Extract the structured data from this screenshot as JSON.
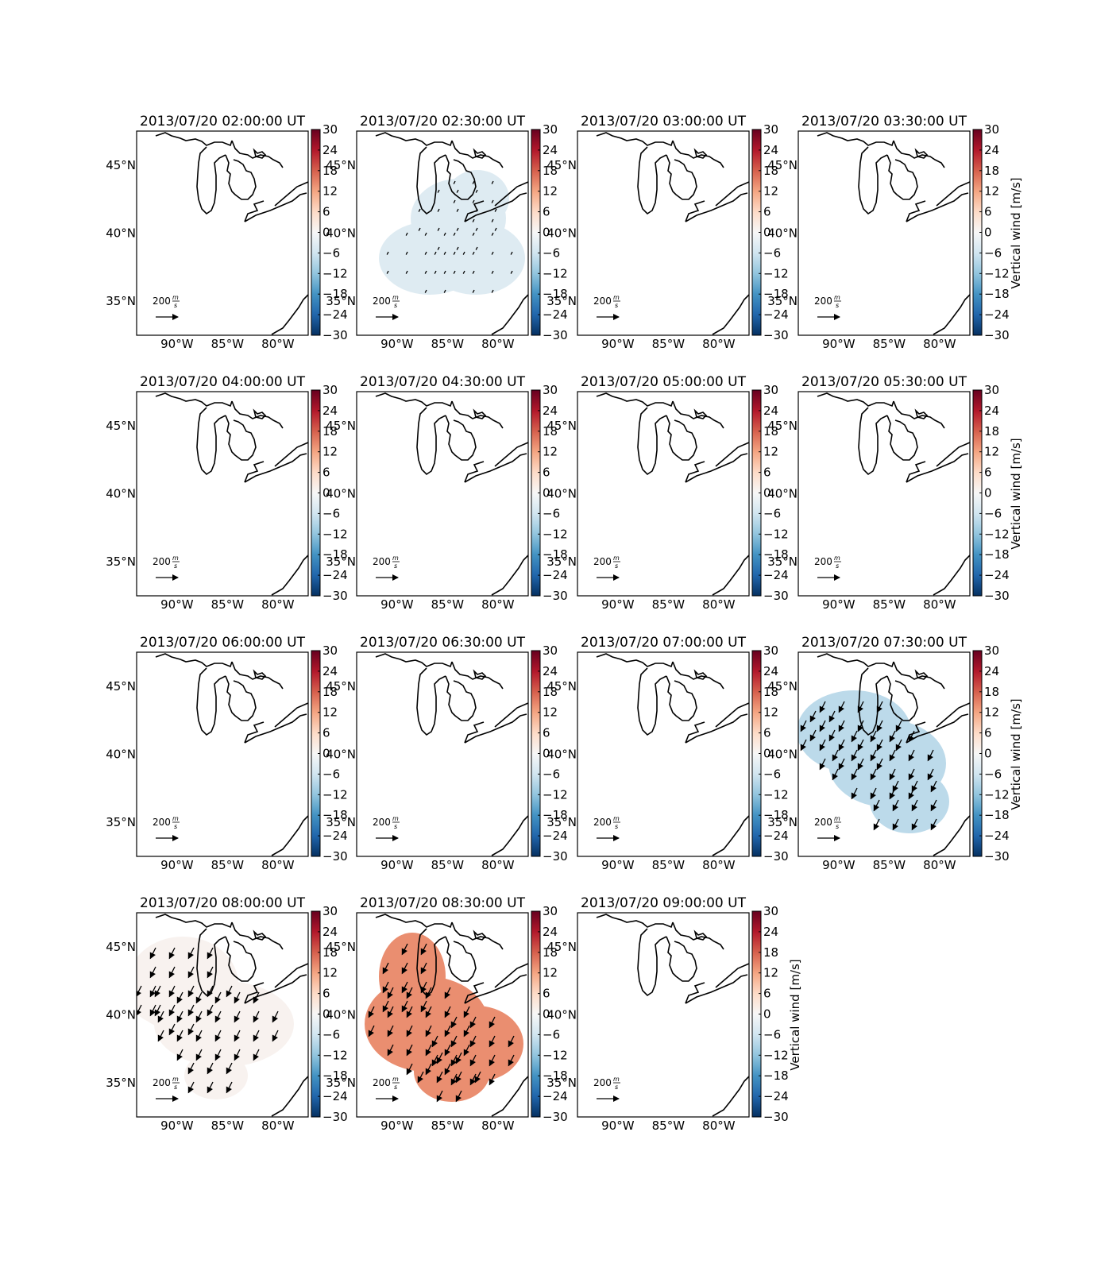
{
  "figure": {
    "colorbar_label": "Vertical wind [m/s]",
    "colormap": [
      "#053061",
      "#2166ac",
      "#4393c3",
      "#92c5de",
      "#d1e5f0",
      "#f7f7f7",
      "#fddbc7",
      "#f4a582",
      "#d6604d",
      "#b2182b",
      "#67001f"
    ],
    "reference_arrow": {
      "value": "200",
      "unit_num": "m",
      "unit_den": "s"
    },
    "coastline_color": "#000000"
  },
  "chart_data": [
    {
      "type": "heatmap",
      "title": "2013/07/20 02:00:00 UT",
      "field_value": null,
      "arrows": false,
      "colorbar_label_shown": false,
      "xlabel": "",
      "ylabel": "",
      "x_ticks": [
        "90°W",
        "85°W",
        "80°W"
      ],
      "y_ticks": [
        "45°N",
        "40°N",
        "35°N"
      ],
      "colorbar_ticks": [
        "30",
        "24",
        "18",
        "12",
        "6",
        "0",
        "−6",
        "−12",
        "−18",
        "−24",
        "−30"
      ],
      "colorbar_range": [
        -30,
        30
      ]
    },
    {
      "type": "heatmap",
      "title": "2013/07/20 02:30:00 UT",
      "field_value": -4,
      "field_region": "north-central",
      "arrows": true,
      "arrow_size": "tiny",
      "colorbar_label_shown": false,
      "xlabel": "",
      "ylabel": "",
      "x_ticks": [
        "90°W",
        "85°W",
        "80°W"
      ],
      "y_ticks": [
        "45°N",
        "40°N",
        "35°N"
      ],
      "colorbar_ticks": [
        "30",
        "24",
        "18",
        "12",
        "6",
        "0",
        "−6",
        "−12",
        "−18",
        "−24",
        "−30"
      ],
      "colorbar_range": [
        -30,
        30
      ]
    },
    {
      "type": "heatmap",
      "title": "2013/07/20 03:00:00 UT",
      "field_value": null,
      "arrows": false,
      "colorbar_label_shown": false,
      "xlabel": "",
      "ylabel": "",
      "x_ticks": [
        "90°W",
        "85°W",
        "80°W"
      ],
      "y_ticks": [
        "45°N",
        "40°N",
        "35°N"
      ],
      "colorbar_ticks": [
        "30",
        "24",
        "18",
        "12",
        "6",
        "0",
        "−6",
        "−12",
        "−18",
        "−24",
        "−30"
      ],
      "colorbar_range": [
        -30,
        30
      ]
    },
    {
      "type": "heatmap",
      "title": "2013/07/20 03:30:00 UT",
      "field_value": null,
      "arrows": false,
      "colorbar_label_shown": true,
      "xlabel": "",
      "ylabel": "",
      "x_ticks": [
        "90°W",
        "85°W",
        "80°W"
      ],
      "y_ticks": [
        "45°N",
        "40°N",
        "35°N"
      ],
      "colorbar_ticks": [
        "30",
        "24",
        "18",
        "12",
        "6",
        "0",
        "−6",
        "−12",
        "−18",
        "−24",
        "−30"
      ],
      "colorbar_range": [
        -30,
        30
      ]
    },
    {
      "type": "heatmap",
      "title": "2013/07/20 04:00:00 UT",
      "field_value": null,
      "arrows": false,
      "colorbar_label_shown": false,
      "xlabel": "",
      "ylabel": "",
      "x_ticks": [
        "90°W",
        "85°W",
        "80°W"
      ],
      "y_ticks": [
        "45°N",
        "40°N",
        "35°N"
      ],
      "colorbar_ticks": [
        "30",
        "24",
        "18",
        "12",
        "6",
        "0",
        "−6",
        "−12",
        "−18",
        "−24",
        "−30"
      ],
      "colorbar_range": [
        -30,
        30
      ]
    },
    {
      "type": "heatmap",
      "title": "2013/07/20 04:30:00 UT",
      "field_value": null,
      "arrows": false,
      "colorbar_label_shown": false,
      "xlabel": "",
      "ylabel": "",
      "x_ticks": [
        "90°W",
        "85°W",
        "80°W"
      ],
      "y_ticks": [
        "45°N",
        "40°N",
        "35°N"
      ],
      "colorbar_ticks": [
        "30",
        "24",
        "18",
        "12",
        "6",
        "0",
        "−6",
        "−12",
        "−18",
        "−24",
        "−30"
      ],
      "colorbar_range": [
        -30,
        30
      ]
    },
    {
      "type": "heatmap",
      "title": "2013/07/20 05:00:00 UT",
      "field_value": null,
      "arrows": false,
      "colorbar_label_shown": false,
      "xlabel": "",
      "ylabel": "",
      "x_ticks": [
        "90°W",
        "85°W",
        "80°W"
      ],
      "y_ticks": [
        "45°N",
        "40°N",
        "35°N"
      ],
      "colorbar_ticks": [
        "30",
        "24",
        "18",
        "12",
        "6",
        "0",
        "−6",
        "−12",
        "−18",
        "−24",
        "−30"
      ],
      "colorbar_range": [
        -30,
        30
      ]
    },
    {
      "type": "heatmap",
      "title": "2013/07/20 05:30:00 UT",
      "field_value": null,
      "arrows": false,
      "colorbar_label_shown": true,
      "xlabel": "",
      "ylabel": "",
      "x_ticks": [
        "90°W",
        "85°W",
        "80°W"
      ],
      "y_ticks": [
        "45°N",
        "40°N",
        "35°N"
      ],
      "colorbar_ticks": [
        "30",
        "24",
        "18",
        "12",
        "6",
        "0",
        "−6",
        "−12",
        "−18",
        "−24",
        "−30"
      ],
      "colorbar_range": [
        -30,
        30
      ]
    },
    {
      "type": "heatmap",
      "title": "2013/07/20 06:00:00 UT",
      "field_value": null,
      "arrows": false,
      "colorbar_label_shown": false,
      "xlabel": "",
      "ylabel": "",
      "x_ticks": [
        "90°W",
        "85°W",
        "80°W"
      ],
      "y_ticks": [
        "45°N",
        "40°N",
        "35°N"
      ],
      "colorbar_ticks": [
        "30",
        "24",
        "18",
        "12",
        "6",
        "0",
        "−6",
        "−12",
        "−18",
        "−24",
        "−30"
      ],
      "colorbar_range": [
        -30,
        30
      ]
    },
    {
      "type": "heatmap",
      "title": "2013/07/20 06:30:00 UT",
      "field_value": null,
      "arrows": false,
      "colorbar_label_shown": false,
      "xlabel": "",
      "ylabel": "",
      "x_ticks": [
        "90°W",
        "85°W",
        "80°W"
      ],
      "y_ticks": [
        "45°N",
        "40°N",
        "35°N"
      ],
      "colorbar_ticks": [
        "30",
        "24",
        "18",
        "12",
        "6",
        "0",
        "−6",
        "−12",
        "−18",
        "−24",
        "−30"
      ],
      "colorbar_range": [
        -30,
        30
      ]
    },
    {
      "type": "heatmap",
      "title": "2013/07/20 07:00:00 UT",
      "field_value": null,
      "arrows": false,
      "colorbar_label_shown": false,
      "xlabel": "",
      "ylabel": "",
      "x_ticks": [
        "90°W",
        "85°W",
        "80°W"
      ],
      "y_ticks": [
        "45°N",
        "40°N",
        "35°N"
      ],
      "colorbar_ticks": [
        "30",
        "24",
        "18",
        "12",
        "6",
        "0",
        "−6",
        "−12",
        "−18",
        "−24",
        "−30"
      ],
      "colorbar_range": [
        -30,
        30
      ]
    },
    {
      "type": "heatmap",
      "title": "2013/07/20 07:30:00 UT",
      "field_value": -8,
      "field_region": "west-central",
      "arrows": true,
      "arrow_size": "large",
      "colorbar_label_shown": true,
      "xlabel": "",
      "ylabel": "",
      "x_ticks": [
        "90°W",
        "85°W",
        "80°W"
      ],
      "y_ticks": [
        "45°N",
        "40°N",
        "35°N"
      ],
      "colorbar_ticks": [
        "30",
        "24",
        "18",
        "12",
        "6",
        "0",
        "−6",
        "−12",
        "−18",
        "−24",
        "−30"
      ],
      "colorbar_range": [
        -30,
        30
      ]
    },
    {
      "type": "heatmap",
      "title": "2013/07/20 08:00:00 UT",
      "field_value": 1,
      "field_region": "west",
      "arrows": true,
      "arrow_size": "large",
      "colorbar_label_shown": false,
      "xlabel": "",
      "ylabel": "",
      "x_ticks": [
        "90°W",
        "85°W",
        "80°W"
      ],
      "y_ticks": [
        "45°N",
        "40°N",
        "35°N"
      ],
      "colorbar_ticks": [
        "30",
        "24",
        "18",
        "12",
        "6",
        "0",
        "−6",
        "−12",
        "−18",
        "−24",
        "−30"
      ],
      "colorbar_range": [
        -30,
        30
      ]
    },
    {
      "type": "heatmap",
      "title": "2013/07/20 08:30:00 UT",
      "field_value": 14,
      "field_region": "central",
      "arrows": true,
      "arrow_size": "large",
      "colorbar_label_shown": false,
      "xlabel": "",
      "ylabel": "",
      "x_ticks": [
        "90°W",
        "85°W",
        "80°W"
      ],
      "y_ticks": [
        "45°N",
        "40°N",
        "35°N"
      ],
      "colorbar_ticks": [
        "30",
        "24",
        "18",
        "12",
        "6",
        "0",
        "−6",
        "−12",
        "−18",
        "−24",
        "−30"
      ],
      "colorbar_range": [
        -30,
        30
      ]
    },
    {
      "type": "heatmap",
      "title": "2013/07/20 09:00:00 UT",
      "field_value": null,
      "arrows": false,
      "colorbar_label_shown": true,
      "xlabel": "",
      "ylabel": "",
      "x_ticks": [
        "90°W",
        "85°W",
        "80°W"
      ],
      "y_ticks": [
        "45°N",
        "40°N",
        "35°N"
      ],
      "colorbar_ticks": [
        "30",
        "24",
        "18",
        "12",
        "6",
        "0",
        "−6",
        "−12",
        "−18",
        "−24",
        "−30"
      ],
      "colorbar_range": [
        -30,
        30
      ]
    }
  ]
}
